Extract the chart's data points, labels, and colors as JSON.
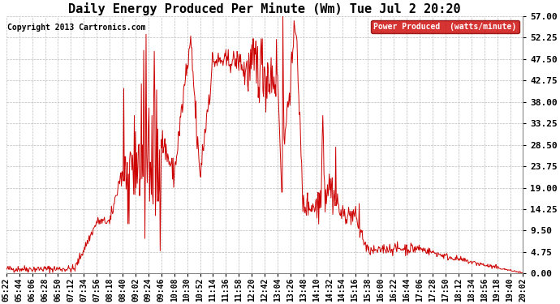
{
  "title": "Daily Energy Produced Per Minute (Wm) Tue Jul 2 20:20",
  "copyright": "Copyright 2013 Cartronics.com",
  "legend_label": "Power Produced  (watts/minute)",
  "legend_bg": "#cc0000",
  "legend_text_color": "#ffffff",
  "line_color": "#cc0000",
  "bg_color": "#ffffff",
  "grid_color": "#bbbbbb",
  "ylim": [
    0,
    57.0
  ],
  "yticks": [
    0.0,
    4.75,
    9.5,
    14.25,
    19.0,
    23.75,
    28.5,
    33.25,
    38.0,
    42.75,
    47.5,
    52.25,
    57.0
  ],
  "title_fontsize": 11,
  "copyright_fontsize": 7,
  "tick_fontsize": 7,
  "ytick_fontsize": 8,
  "figsize": [
    6.9,
    3.75
  ],
  "dpi": 100
}
